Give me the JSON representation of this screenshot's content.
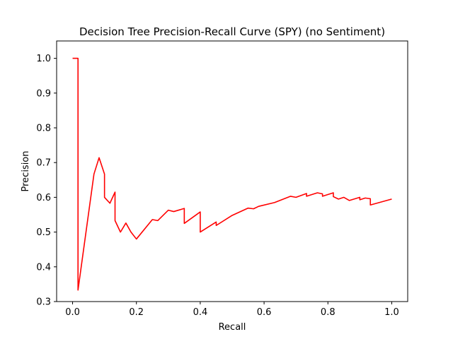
{
  "chart_data": {
    "type": "line",
    "title": "Decision Tree Precision-Recall Curve (SPY) (no Sentiment)",
    "xlabel": "Recall",
    "ylabel": "Precision",
    "xlim": [
      -0.05,
      1.05
    ],
    "ylim": [
      0.3,
      1.05
    ],
    "xticks": [
      0.0,
      0.2,
      0.4,
      0.6,
      0.8,
      1.0
    ],
    "xtick_labels": [
      "0.0",
      "0.2",
      "0.4",
      "0.6",
      "0.8",
      "1.0"
    ],
    "yticks": [
      0.3,
      0.4,
      0.5,
      0.6,
      0.7,
      0.8,
      0.9,
      1.0
    ],
    "ytick_labels": [
      "0.3",
      "0.4",
      "0.5",
      "0.6",
      "0.7",
      "0.8",
      "0.9",
      "1.0"
    ],
    "grid": false,
    "series": [
      {
        "color": "#ff0000",
        "x": [
          0.0,
          0.017,
          0.017,
          0.017,
          0.067,
          0.083,
          0.1,
          0.1,
          0.117,
          0.133,
          0.133,
          0.15,
          0.167,
          0.183,
          0.2,
          0.25,
          0.267,
          0.3,
          0.317,
          0.35,
          0.35,
          0.4,
          0.4,
          0.45,
          0.45,
          0.5,
          0.55,
          0.567,
          0.583,
          0.633,
          0.683,
          0.7,
          0.733,
          0.733,
          0.767,
          0.783,
          0.783,
          0.817,
          0.817,
          0.833,
          0.85,
          0.867,
          0.9,
          0.9,
          0.917,
          0.933,
          0.933,
          1.0
        ],
        "y": [
          1.0,
          1.0,
          0.333,
          0.333,
          0.667,
          0.714,
          0.667,
          0.6,
          0.583,
          0.615,
          0.533,
          0.5,
          0.526,
          0.5,
          0.48,
          0.536,
          0.533,
          0.563,
          0.559,
          0.568,
          0.525,
          0.558,
          0.5,
          0.529,
          0.519,
          0.548,
          0.569,
          0.567,
          0.574,
          0.585,
          0.603,
          0.6,
          0.611,
          0.603,
          0.613,
          0.61,
          0.603,
          0.613,
          0.602,
          0.595,
          0.6,
          0.591,
          0.6,
          0.593,
          0.598,
          0.596,
          0.578,
          0.595
        ]
      }
    ]
  }
}
